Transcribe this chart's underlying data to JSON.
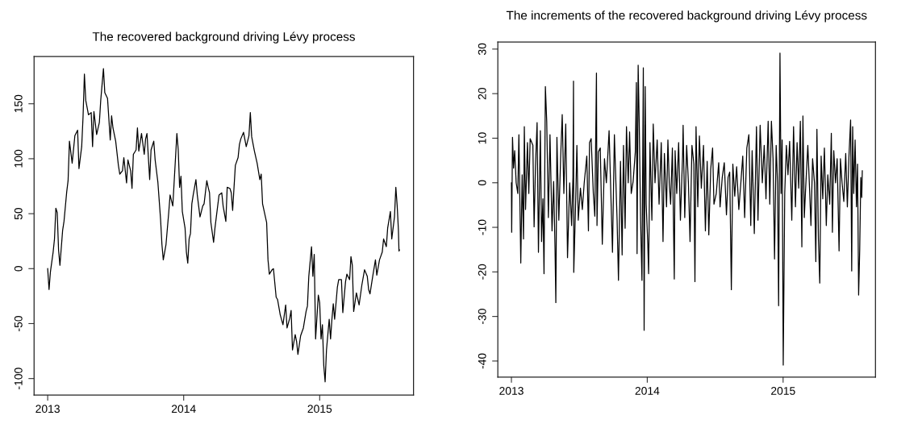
{
  "chart_data": [
    {
      "type": "line",
      "title": "The recovered background driving Lévy process",
      "xlim": [
        2012.9,
        2015.69
      ],
      "ylim": [
        -115,
        193
      ],
      "xticks": [
        2013,
        2014,
        2015
      ],
      "yticks": [
        -100,
        -50,
        0,
        50,
        100,
        150
      ],
      "series": [
        {
          "color": "#000000",
          "x": [
            2013.0,
            2013.01,
            2013.02,
            2013.04,
            2013.05,
            2013.06,
            2013.07,
            2013.08,
            2013.09,
            2013.11,
            2013.12,
            2013.14,
            2013.15,
            2013.16,
            2013.18,
            2013.2,
            2013.22,
            2013.23,
            2013.25,
            2013.26,
            2013.27,
            2013.28,
            2013.3,
            2013.32,
            2013.33,
            2013.34,
            2013.36,
            2013.38,
            2013.39,
            2013.41,
            2013.42,
            2013.44,
            2013.46,
            2013.47,
            2013.48,
            2013.5,
            2013.52,
            2013.53,
            2013.55,
            2013.56,
            2013.58,
            2013.59,
            2013.61,
            2013.62,
            2013.63,
            2013.65,
            2013.66,
            2013.67,
            2013.69,
            2013.71,
            2013.72,
            2013.73,
            2013.75,
            2013.76,
            2013.78,
            2013.79,
            2013.81,
            2013.83,
            2013.84,
            2013.85,
            2013.87,
            2013.89,
            2013.9,
            2013.92,
            2013.93,
            2013.94,
            2013.95,
            2013.96,
            2013.97,
            2013.98,
            2013.99,
            2014.01,
            2014.02,
            2014.03,
            2014.04,
            2014.05,
            2014.06,
            2014.07,
            2014.09,
            2014.1,
            2014.12,
            2014.14,
            2014.15,
            2014.17,
            2014.18,
            2014.19,
            2014.2,
            2014.22,
            2014.23,
            2014.24,
            2014.26,
            2014.28,
            2014.29,
            2014.31,
            2014.32,
            2014.34,
            2014.35,
            2014.36,
            2014.38,
            2014.4,
            2014.41,
            2014.42,
            2014.44,
            2014.46,
            2014.48,
            2014.49,
            2014.5,
            2014.52,
            2014.54,
            2014.56,
            2014.57,
            2014.58,
            2014.61,
            2014.62,
            2014.63,
            2014.65,
            2014.66,
            2014.68,
            2014.69,
            2014.71,
            2014.73,
            2014.75,
            2014.76,
            2014.78,
            2014.79,
            2014.8,
            2014.82,
            2014.83,
            2014.84,
            2014.86,
            2014.88,
            2014.9,
            2014.91,
            2014.92,
            2014.94,
            2014.95,
            2014.96,
            2014.97,
            2014.99,
            2015.0,
            2015.01,
            2015.02,
            2015.03,
            2015.04,
            2015.05,
            2015.07,
            2015.08,
            2015.09,
            2015.1,
            2015.11,
            2015.13,
            2015.14,
            2015.16,
            2015.17,
            2015.19,
            2015.2,
            2015.22,
            2015.23,
            2015.24,
            2015.25,
            2015.27,
            2015.29,
            2015.31,
            2015.33,
            2015.35,
            2015.36,
            2015.37,
            2015.39,
            2015.41,
            2015.42,
            2015.44,
            2015.46,
            2015.47,
            2015.49,
            2015.5,
            2015.52,
            2015.53,
            2015.55,
            2015.56,
            2015.57,
            2015.579,
            2015.583,
            2015.587
          ],
          "values": [
            0,
            -19,
            -3,
            15,
            27,
            55,
            51,
            17,
            3,
            35,
            43,
            70,
            80,
            116,
            96,
            121,
            126,
            91,
            111,
            138,
            177,
            153,
            140,
            142,
            111,
            143,
            122,
            133,
            153,
            182,
            160,
            155,
            117,
            139,
            128,
            116,
            94,
            86,
            89,
            101,
            78,
            99,
            89,
            73,
            104,
            108,
            128,
            107,
            123,
            104,
            118,
            123,
            81,
            108,
            116,
            99,
            79,
            45,
            22,
            8,
            22,
            51,
            67,
            57,
            79,
            101,
            123,
            108,
            74,
            84,
            52,
            37,
            15,
            5,
            27,
            32,
            59,
            67,
            81,
            67,
            47,
            57,
            59,
            80,
            74,
            69,
            42,
            24,
            37,
            47,
            67,
            69,
            57,
            43,
            74,
            73,
            69,
            53,
            94,
            101,
            113,
            118,
            124,
            111,
            121,
            142,
            120,
            107,
            96,
            81,
            86,
            59,
            42,
            8,
            -5,
            -1,
            0,
            -26,
            -28,
            -42,
            -51,
            -33,
            -54,
            -45,
            -38,
            -74,
            -60,
            -66,
            -78,
            -61,
            -54,
            -39,
            -34,
            -7,
            20,
            -7,
            13,
            -64,
            -24,
            -31,
            -64,
            -51,
            -88,
            -103,
            -74,
            -46,
            -64,
            -46,
            -32,
            -46,
            -17,
            -10,
            -10,
            -40,
            -12,
            -5,
            -10,
            11,
            3,
            -39,
            -22,
            -33,
            -15,
            -1,
            -7,
            -19,
            -23,
            -7,
            8,
            -6,
            8,
            15,
            27,
            20,
            37,
            52,
            27,
            47,
            74,
            57,
            35,
            16,
            17
          ]
        }
      ]
    },
    {
      "type": "line",
      "title": "The increments of the recovered background driving Lévy process",
      "xlim": [
        2012.9,
        2015.68
      ],
      "ylim": [
        -43.6,
        31.6
      ],
      "xticks": [
        2013,
        2014,
        2015
      ],
      "yticks": [
        -40,
        -30,
        -20,
        -10,
        0,
        10,
        20,
        30
      ],
      "series": [
        {
          "color": "#000000",
          "x": [
            2013.0,
            2013.002,
            2013.008,
            2013.016,
            2013.024,
            2013.035,
            2013.047,
            2013.055,
            2013.069,
            2013.079,
            2013.089,
            2013.095,
            2013.104,
            2013.118,
            2013.128,
            2013.138,
            2013.158,
            2013.167,
            2013.177,
            2013.189,
            2013.199,
            2013.213,
            2013.222,
            2013.232,
            2013.24,
            2013.25,
            2013.26,
            2013.272,
            2013.284,
            2013.299,
            2013.311,
            2013.321,
            2013.327,
            2013.335,
            2013.349,
            2013.362,
            2013.374,
            2013.386,
            2013.4,
            2013.413,
            2013.429,
            2013.443,
            2013.453,
            2013.457,
            2013.459,
            2013.473,
            2013.482,
            2013.492,
            2013.508,
            2013.522,
            2013.536,
            2013.555,
            2013.567,
            2013.575,
            2013.587,
            2013.603,
            2013.614,
            2013.626,
            2013.63,
            2013.64,
            2013.654,
            2013.669,
            2013.685,
            2013.699,
            2013.719,
            2013.744,
            2013.758,
            2013.778,
            2013.788,
            2013.803,
            2013.815,
            2013.825,
            2013.837,
            2013.847,
            2013.86,
            2013.87,
            2013.882,
            2013.896,
            2013.912,
            2013.92,
            2013.925,
            2013.933,
            2013.941,
            2013.951,
            2013.961,
            2013.971,
            2013.977,
            2013.985,
            2013.992,
            2014.004,
            2014.01,
            2014.02,
            2014.034,
            2014.044,
            2014.057,
            2014.073,
            2014.087,
            2014.103,
            2014.116,
            2014.126,
            2014.142,
            2014.152,
            2014.162,
            2014.172,
            2014.185,
            2014.199,
            2014.205,
            2014.217,
            2014.231,
            2014.244,
            2014.26,
            2014.264,
            2014.276,
            2014.29,
            2014.303,
            2014.315,
            2014.329,
            2014.343,
            2014.351,
            2014.359,
            2014.372,
            2014.384,
            2014.398,
            2014.414,
            2014.428,
            2014.441,
            2014.453,
            2014.467,
            2014.481,
            2014.491,
            2014.508,
            2014.526,
            2014.536,
            2014.552,
            2014.567,
            2014.583,
            2014.595,
            2014.607,
            2014.619,
            2014.63,
            2014.644,
            2014.658,
            2014.674,
            2014.689,
            2014.703,
            2014.717,
            2014.733,
            2014.748,
            2014.762,
            2014.772,
            2014.788,
            2014.804,
            2014.815,
            2014.831,
            2014.847,
            2014.861,
            2014.874,
            2014.89,
            2014.902,
            2014.914,
            2014.926,
            2014.937,
            2014.949,
            2014.959,
            2014.967,
            2014.977,
            2014.985,
            2014.993,
            2015.001,
            2015.012,
            2015.024,
            2015.036,
            2015.048,
            2015.064,
            2015.077,
            2015.091,
            2015.103,
            2015.115,
            2015.127,
            2015.138,
            2015.146,
            2015.156,
            2015.166,
            2015.182,
            2015.193,
            2015.205,
            2015.217,
            2015.231,
            2015.241,
            2015.249,
            2015.26,
            2015.27,
            2015.28,
            2015.292,
            2015.304,
            2015.318,
            2015.329,
            2015.343,
            2015.355,
            2015.363,
            2015.373,
            2015.386,
            2015.398,
            2015.412,
            2015.422,
            2015.434,
            2015.447,
            2015.461,
            2015.473,
            2015.485,
            2015.497,
            2015.505,
            2015.512,
            2015.52,
            2015.53,
            2015.54,
            2015.548,
            2015.556,
            2015.564,
            2015.572,
            2015.579,
            2015.583
          ],
          "values": [
            0.0,
            -11.1,
            10.2,
            3.3,
            7.2,
            0.0,
            -2.4,
            10.8,
            -18.0,
            1.8,
            -12.6,
            12.6,
            -6.0,
            9.0,
            -2.4,
            9.9,
            8.4,
            -9.9,
            3.6,
            13.5,
            -15.6,
            11.7,
            -13.2,
            -3.6,
            -20.4,
            21.6,
            13.8,
            -7.8,
            10.8,
            -10.8,
            0.3,
            -14.7,
            -26.9,
            10.2,
            -8.4,
            5.4,
            15.3,
            -2.4,
            13.2,
            -16.8,
            0.0,
            -9.6,
            1.2,
            22.8,
            -20.1,
            -4.2,
            8.4,
            -8.4,
            -1.2,
            -6.0,
            0.0,
            6.0,
            -10.8,
            9.0,
            9.9,
            -2.4,
            -7.5,
            24.6,
            -9.6,
            6.9,
            7.8,
            -13.8,
            5.4,
            0.0,
            11.7,
            -15.6,
            10.8,
            -8.4,
            -21.9,
            4.8,
            -16.2,
            8.4,
            -10.2,
            12.6,
            0.0,
            11.4,
            -2.4,
            0.3,
            6.9,
            22.5,
            -15.9,
            26.4,
            13.2,
            -8.4,
            -21.9,
            25.8,
            -33.1,
            21.6,
            -4.8,
            -13.8,
            -20.4,
            9.0,
            -8.4,
            13.2,
            0.0,
            9.6,
            -4.8,
            9.0,
            -13.2,
            6.6,
            -5.4,
            9.6,
            0.0,
            -4.8,
            7.8,
            -21.6,
            7.2,
            -2.4,
            9.0,
            -8.4,
            6.0,
            12.9,
            -7.8,
            8.4,
            0.0,
            -13.2,
            8.4,
            4.2,
            -22.2,
            12.6,
            -5.4,
            10.5,
            -1.2,
            8.4,
            -10.8,
            4.8,
            -11.7,
            3.0,
            7.8,
            -4.8,
            -2.4,
            4.5,
            -5.4,
            1.2,
            4.5,
            -7.2,
            1.2,
            2.4,
            -24.0,
            4.2,
            -3.0,
            3.6,
            -6.0,
            0.0,
            6.0,
            -7.8,
            7.8,
            10.8,
            -9.6,
            7.2,
            -11.4,
            12.6,
            -8.4,
            12.9,
            0.0,
            8.4,
            -3.6,
            13.8,
            -4.8,
            13.8,
            5.4,
            -17.1,
            8.4,
            0.0,
            -27.6,
            29.1,
            -2.4,
            9.6,
            -40.9,
            -2.4,
            8.4,
            1.8,
            9.3,
            -8.4,
            12.6,
            -5.4,
            9.0,
            -1.2,
            13.8,
            -14.4,
            15.0,
            -7.8,
            -1.2,
            8.4,
            0.0,
            -9.6,
            5.4,
            0.0,
            -17.7,
            12.0,
            -12.6,
            -22.5,
            6.0,
            -3.6,
            7.8,
            -9.6,
            1.8,
            -4.8,
            11.1,
            -11.1,
            7.2,
            0.0,
            5.4,
            -15.3,
            5.4,
            0.0,
            -4.2,
            6.6,
            -5.4,
            6.0,
            14.1,
            -19.8,
            12.6,
            -2.4,
            9.6,
            -5.4,
            4.2,
            -25.2,
            -15.0,
            1.2,
            -3.3,
            2.7
          ]
        }
      ]
    }
  ]
}
